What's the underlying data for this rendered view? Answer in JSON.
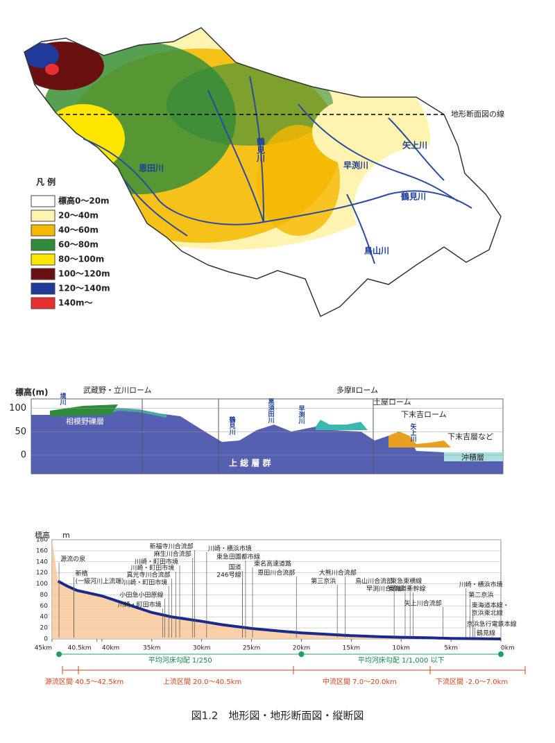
{
  "map": {
    "section_line_label": "地形断面図の線",
    "labels": [
      "恩田川",
      "鶴見川",
      "早渕川",
      "矢上川",
      "鶴見川",
      "鳥山川"
    ],
    "legend_title": "凡 例",
    "legend": [
      {
        "label": "標高0～20m",
        "color": "#ffffff"
      },
      {
        "label": "20～40m",
        "color": "#fff3b0"
      },
      {
        "label": "40～60m",
        "color": "#f5b800"
      },
      {
        "label": "60～80m",
        "color": "#2e8b3a"
      },
      {
        "label": "80～100m",
        "color": "#ffe600"
      },
      {
        "label": "100～120m",
        "color": "#6b1010"
      },
      {
        "label": "120～140m",
        "color": "#1f3a9a"
      },
      {
        "label": "140m～",
        "color": "#e83030"
      }
    ]
  },
  "section": {
    "ylabel": "標高(m)",
    "ylim": [
      -40,
      120
    ],
    "yticks": [
      0,
      50,
      100
    ],
    "labels": [
      "境川",
      "武蔵野・立川ローム",
      "相模野礫層",
      "鶴見川",
      "黒須田川",
      "早渕川",
      "多摩Ⅱローム",
      "土屋ローム",
      "下末吉ローム",
      "矢上川",
      "下末吉層など",
      "沖積層",
      "上 総 層 群"
    ]
  },
  "chart_data": {
    "type": "line",
    "ylabel": "標高",
    "yunit": "m",
    "ylim": [
      0,
      180
    ],
    "yticks": [
      0,
      20,
      40,
      60,
      80,
      100,
      120,
      140,
      160,
      180
    ],
    "xlim": [
      45,
      0
    ],
    "xticks": [
      {
        "value": 45,
        "label": "45km"
      },
      {
        "value": 40.5,
        "label": "40.5km"
      },
      {
        "value": 40,
        "label": "40km"
      },
      {
        "value": 35,
        "label": "35km"
      },
      {
        "value": 30,
        "label": "30km"
      },
      {
        "value": 25,
        "label": "25km"
      },
      {
        "value": 20,
        "label": "20km"
      },
      {
        "value": 15,
        "label": "15km"
      },
      {
        "value": 10,
        "label": "10km"
      },
      {
        "value": 5,
        "label": "5km"
      },
      {
        "value": 0,
        "label": "0km"
      }
    ],
    "grid": true,
    "series": [
      {
        "color": "#1a2a8c",
        "x": [
          44.4,
          43.5,
          42.5,
          41,
          40,
          38,
          36,
          35,
          33,
          30,
          28,
          25,
          22,
          20,
          17,
          15,
          12,
          10,
          7,
          5,
          2,
          0
        ],
        "values": [
          105,
          96,
          88,
          82,
          78,
          66,
          54,
          48,
          40,
          32,
          26,
          19,
          14,
          11,
          8,
          6,
          4,
          3,
          2,
          1,
          0.5,
          0
        ]
      }
    ],
    "annotations": [
      {
        "label": "源流の泉",
        "x": 44.3
      },
      {
        "label": "新橋",
        "x": 42.8
      },
      {
        "label": "(一級河川上流端)",
        "x": 42.8
      },
      {
        "label": "新福寺川合流部",
        "x": 30.7
      },
      {
        "label": "麻生川合流部",
        "x": 30.9
      },
      {
        "label": "川崎・町田市境",
        "x": 32.2
      },
      {
        "label": "川崎・町田市境",
        "x": 32.6
      },
      {
        "label": "真光寺川合流部",
        "x": 33.0
      },
      {
        "label": "川崎・町田市境",
        "x": 33.3
      },
      {
        "label": "小田急小田原線",
        "x": 33.7
      },
      {
        "label": "川崎・町田市境",
        "x": 33.9
      },
      {
        "label": "川崎・横浜市境",
        "x": 29.5
      },
      {
        "label": "東急田園都市線",
        "x": 25.6
      },
      {
        "label": "国道",
        "x": 25.9
      },
      {
        "label": "246号線",
        "x": 25.9
      },
      {
        "label": "東名高速道路",
        "x": 24.9
      },
      {
        "label": "恩田川合流部",
        "x": 20.5
      },
      {
        "label": "大熊川合流部",
        "x": 15.6
      },
      {
        "label": "第三京浜",
        "x": 16.4
      },
      {
        "label": "鳥山川合流部",
        "x": 10.7
      },
      {
        "label": "早渕川合流部",
        "x": 9.6
      },
      {
        "label": "東急東横線",
        "x": 9.1
      },
      {
        "label": "東海道新幹線",
        "x": 8.8
      },
      {
        "label": "矢上川合流部",
        "x": 5.8
      },
      {
        "label": "川崎・横浜市境",
        "x": 3.5
      },
      {
        "label": "第二京浜",
        "x": 3.1
      },
      {
        "label": "東海道本線・",
        "x": 2.8
      },
      {
        "label": "京浜東北線",
        "x": 2.8
      },
      {
        "label": "京浜急行電鉄本線",
        "x": 2.6
      },
      {
        "label": "鶴見線",
        "x": 0.9
      }
    ],
    "gradients": [
      {
        "label": "平均河床勾配 1/250",
        "from": 44.3,
        "to": 20
      },
      {
        "label": "平均河床勾配 1/1,000 以下",
        "from": 20,
        "to": 0
      }
    ],
    "sections": [
      "源流区間 40.5～42.5km",
      "上流区間 20.0～40.5km",
      "中流区間 7.0～20.0km",
      "下流区間 -2.0～7.0km"
    ]
  },
  "caption": "図1.2　地形図・地形断面図・縦断図"
}
